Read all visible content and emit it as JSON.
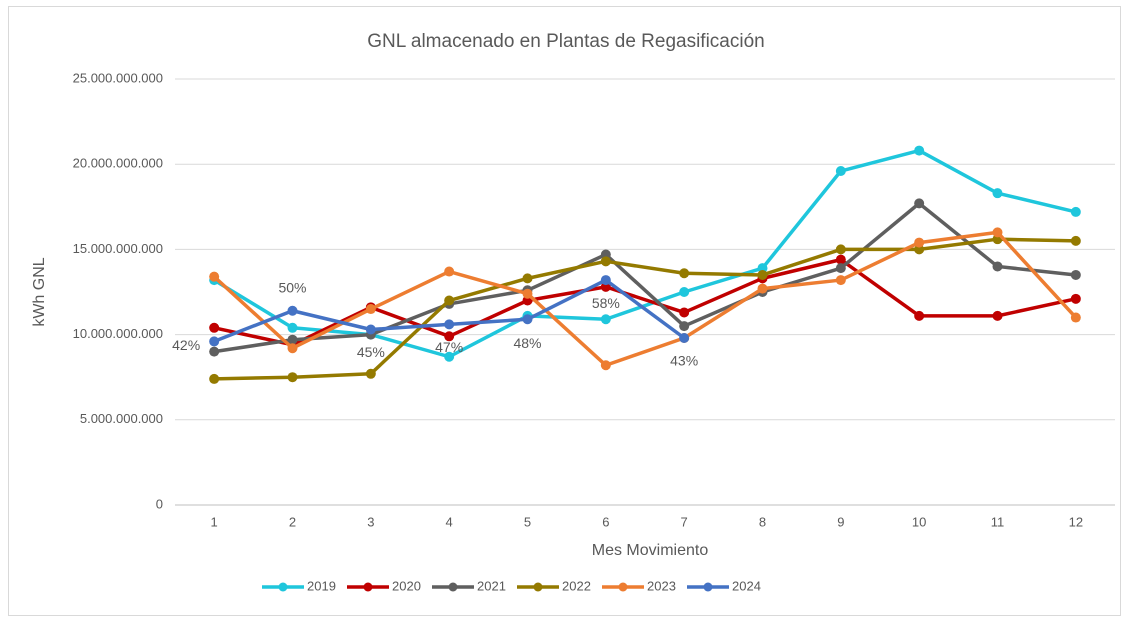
{
  "chart_data": {
    "type": "line",
    "title": "GNL almacenado en Plantas de Regasificación",
    "x_label": "Mes Movimiento",
    "y_label": "kWh GNL",
    "categories": [
      "1",
      "2",
      "3",
      "4",
      "5",
      "6",
      "7",
      "8",
      "9",
      "10",
      "11",
      "12"
    ],
    "ylim": [
      0,
      25000000000
    ],
    "yticks": [
      0,
      {
        "value": 5000000000,
        "label": "5.000.000.000"
      },
      {
        "value": 10000000000,
        "label": "10.000.000.000"
      },
      {
        "value": 15000000000,
        "label": "15.000.000.000"
      },
      {
        "value": 20000000000,
        "label": "20.000.000.000"
      },
      {
        "value": 25000000000,
        "label": "25.000.000.000"
      }
    ],
    "grid": true,
    "legend": "bottom",
    "series": [
      {
        "name": "2019",
        "color": "#1fc6dc",
        "values": [
          13200000000,
          10400000000,
          10000000000,
          8700000000,
          11100000000,
          10900000000,
          12500000000,
          13900000000,
          19600000000,
          20800000000,
          18300000000,
          17200000000
        ]
      },
      {
        "name": "2020",
        "color": "#c00000",
        "values": [
          10400000000,
          9400000000,
          11600000000,
          9900000000,
          12000000000,
          12800000000,
          11300000000,
          13300000000,
          14400000000,
          11100000000,
          11100000000,
          12100000000
        ]
      },
      {
        "name": "2021",
        "color": "#5f5f5f",
        "values": [
          9000000000,
          9700000000,
          10000000000,
          11800000000,
          12600000000,
          14700000000,
          10500000000,
          12500000000,
          13900000000,
          17700000000,
          14000000000,
          13500000000
        ]
      },
      {
        "name": "2022",
        "color": "#947a00",
        "values": [
          7400000000,
          7500000000,
          7700000000,
          12000000000,
          13300000000,
          14300000000,
          13600000000,
          13500000000,
          15000000000,
          15000000000,
          15600000000,
          15500000000
        ]
      },
      {
        "name": "2023",
        "color": "#ed7d31",
        "values": [
          13400000000,
          9200000000,
          11500000000,
          13700000000,
          12400000000,
          8200000000,
          9800000000,
          12700000000,
          13200000000,
          15400000000,
          16000000000,
          11000000000
        ]
      },
      {
        "name": "2024",
        "color": "#4472c4",
        "values": [
          9600000000,
          11400000000,
          10300000000,
          10600000000,
          10900000000,
          13200000000,
          9800000000,
          null,
          null,
          null,
          null,
          null
        ],
        "point_labels": [
          "42%",
          "50%",
          "45%",
          "47%",
          "48%",
          "58%",
          "43%",
          null,
          null,
          null,
          null,
          null
        ]
      }
    ]
  }
}
